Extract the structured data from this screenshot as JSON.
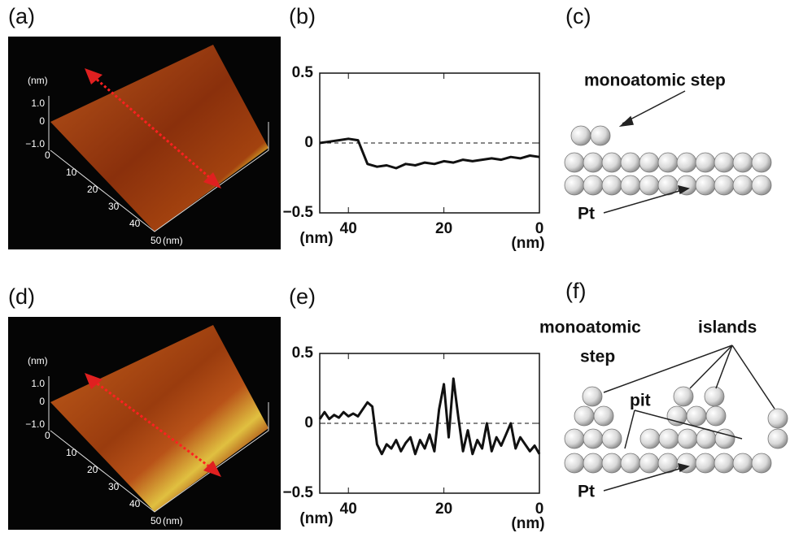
{
  "panel_labels": [
    "(a)",
    "(b)",
    "(c)",
    "(d)",
    "(e)",
    "(f)"
  ],
  "afm_images": [
    {
      "z_unit": "(nm)",
      "z_ticks": [
        "1.0",
        "0",
        "−1.0"
      ],
      "x_ticks": [
        "0",
        "10",
        "20",
        "30",
        "40",
        "50"
      ],
      "x_unit": "(nm)"
    },
    {
      "z_unit": "(nm)",
      "z_ticks": [
        "1.0",
        "0",
        "−1.0"
      ],
      "x_ticks": [
        "0",
        "10",
        "20",
        "30",
        "40",
        "50"
      ],
      "x_unit": "(nm)"
    }
  ],
  "diagram_c": {
    "step_label": "monoatomic step",
    "substrate_label": "Pt"
  },
  "diagram_f": {
    "step_label_1": "monoatomic",
    "step_label_2": "step",
    "islands_label": "islands",
    "pit_label": "pit",
    "substrate_label": "Pt"
  },
  "chart_data": [
    {
      "type": "line",
      "xlabel": "(nm)",
      "x": [
        46,
        44,
        42,
        40,
        38,
        36,
        34,
        32,
        30,
        28,
        26,
        24,
        22,
        20,
        18,
        16,
        14,
        12,
        10,
        8,
        6,
        4,
        2,
        0
      ],
      "series": [
        {
          "color": "#111111",
          "values": [
            0.0,
            0.01,
            0.02,
            0.03,
            0.02,
            -0.15,
            -0.17,
            -0.16,
            -0.18,
            -0.15,
            -0.16,
            -0.14,
            -0.15,
            -0.13,
            -0.14,
            -0.12,
            -0.13,
            -0.12,
            -0.11,
            -0.12,
            -0.1,
            -0.11,
            -0.09,
            -0.1
          ]
        }
      ],
      "xlim": [
        46,
        0
      ],
      "ylim": [
        -0.5,
        0.5
      ],
      "xticks": [
        40,
        20,
        0
      ],
      "yticks": [
        {
          "value": -0.5,
          "label": "−0.5"
        },
        0,
        0.5
      ],
      "zero_line": true
    },
    {
      "type": "line",
      "xlabel": "(nm)",
      "x": [
        46,
        45,
        44,
        43,
        42,
        41,
        40,
        39,
        38,
        37,
        36,
        35,
        34,
        33,
        32,
        31,
        30,
        29,
        28,
        27,
        26,
        25,
        24,
        23,
        22,
        21,
        20,
        19,
        18,
        17,
        16,
        15,
        14,
        13,
        12,
        11,
        10,
        9,
        8,
        7,
        6,
        5,
        4,
        3,
        2,
        1,
        0
      ],
      "series": [
        {
          "color": "#111111",
          "values": [
            0.03,
            0.08,
            0.03,
            0.06,
            0.04,
            0.08,
            0.05,
            0.07,
            0.05,
            0.1,
            0.15,
            0.12,
            -0.15,
            -0.22,
            -0.15,
            -0.18,
            -0.12,
            -0.2,
            -0.14,
            -0.1,
            -0.22,
            -0.12,
            -0.18,
            -0.08,
            -0.2,
            0.1,
            0.28,
            -0.1,
            0.32,
            0.05,
            -0.2,
            -0.05,
            -0.22,
            -0.12,
            -0.18,
            0.0,
            -0.2,
            -0.1,
            -0.16,
            -0.08,
            0.0,
            -0.18,
            -0.1,
            -0.15,
            -0.2,
            -0.16,
            -0.22
          ]
        }
      ],
      "xlim": [
        46,
        0
      ],
      "ylim": [
        -0.5,
        0.5
      ],
      "xticks": [
        40,
        20,
        0
      ],
      "yticks": [
        {
          "value": -0.5,
          "label": "−0.5"
        },
        0,
        0.5
      ],
      "zero_line": true
    }
  ]
}
